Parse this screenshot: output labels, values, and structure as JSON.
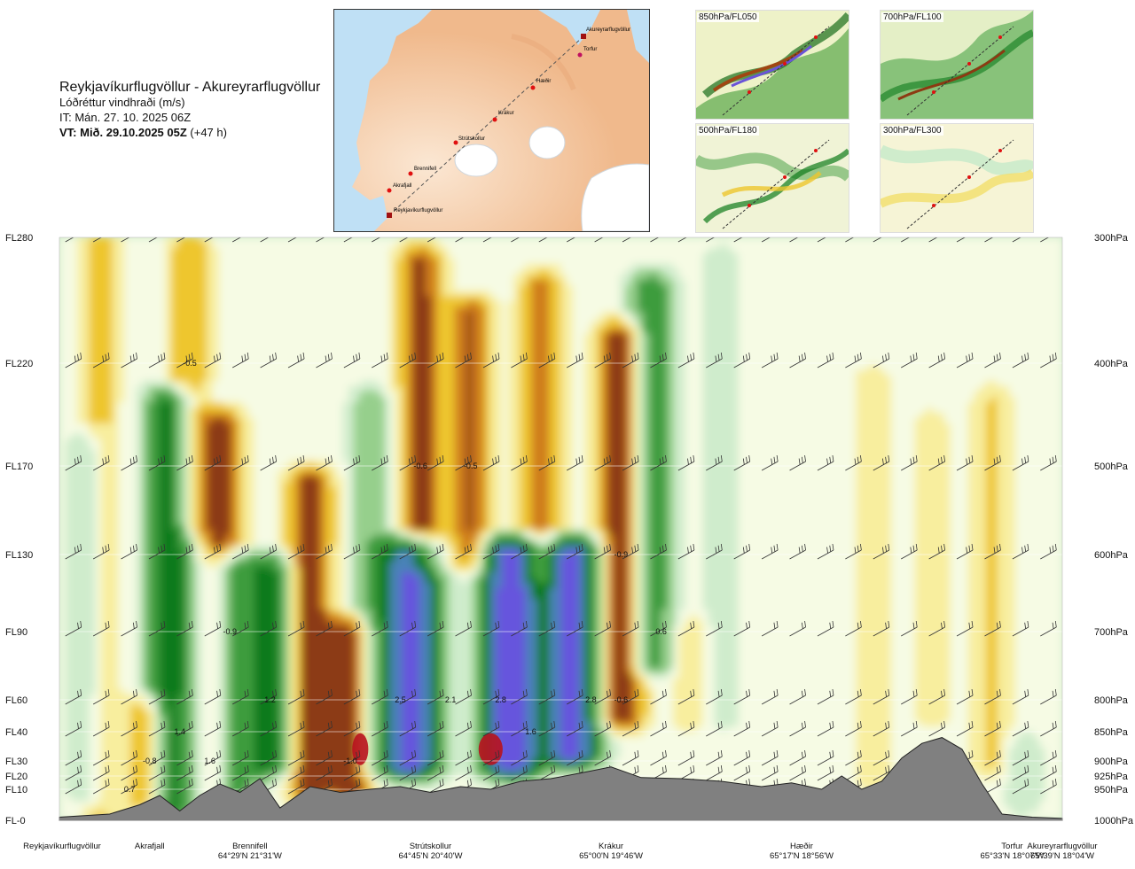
{
  "header": {
    "title": "Reykjavíkurflugvöllur - Akureyrarflugvöllur",
    "subtitle": "Lóðréttur vindhraði (m/s)",
    "it_line": "IT: Mán. 27. 10. 2025 06Z",
    "vt_label": "VT: Mið. 29.10.2025 05Z",
    "vt_offset": " (+47 h)"
  },
  "route_map": {
    "points": [
      "Reykjavíkurflugvöllur",
      "Akrafjall",
      "Brennifell",
      "Strútskollur",
      "Krákur",
      "Hæðir",
      "Torfur",
      "Akureyrarflugvöllur"
    ]
  },
  "thumbnails": [
    {
      "label": "850hPa/FL050"
    },
    {
      "label": "700hPa/FL100"
    },
    {
      "label": "500hPa/FL180"
    },
    {
      "label": "300hPa/FL300"
    }
  ],
  "colors": {
    "strong_down": "#8c3a12",
    "down": "#cf7d1a",
    "weak_down": "#eec62d",
    "very_weak_down": "#f8ee9e",
    "neutral": "#f6fbe4",
    "very_weak_up": "#cfeccc",
    "weak_up": "#96cf8c",
    "up": "#3d9c3c",
    "strong_up": "#0e7a1a",
    "very_strong_up": "#4a82b8",
    "extreme_up": "#6655dd",
    "extreme_down": "#b8121e",
    "terrain": "#808080"
  },
  "chart_data": {
    "type": "heatmap",
    "title": "Lóðréttur vindhraði (m/s)",
    "flight_levels": [
      {
        "fl": "FL280",
        "p": "300hPa"
      },
      {
        "fl": "FL220",
        "p": "400hPa"
      },
      {
        "fl": "FL170",
        "p": "500hPa"
      },
      {
        "fl": "FL130",
        "p": "600hPa"
      },
      {
        "fl": "FL90",
        "p": "700hPa"
      },
      {
        "fl": "FL60",
        "p": "800hPa"
      },
      {
        "fl": "FL40",
        "p": "850hPa"
      },
      {
        "fl": "FL30",
        "p": "900hPa"
      },
      {
        "fl": "FL20",
        "p": "925hPa"
      },
      {
        "fl": "FL10",
        "p": "950hPa"
      },
      {
        "fl": "FL-0",
        "p": "1000hPa"
      }
    ],
    "locations": [
      {
        "name": "Reykjavíkurflugvöllur",
        "coord": "",
        "dist": 0.0
      },
      {
        "name": "Akrafjall",
        "coord": "",
        "dist": 0.09
      },
      {
        "name": "Brennifell",
        "coord": "64°29'N 21°31'W",
        "dist": 0.19
      },
      {
        "name": "Strútskollur",
        "coord": "64°45'N 20°40'W",
        "dist": 0.37
      },
      {
        "name": "Krákur",
        "coord": "65°00'N 19°46'W",
        "dist": 0.55
      },
      {
        "name": "Hæðir",
        "coord": "65°17'N 18°56'W",
        "dist": 0.74
      },
      {
        "name": "Torfur",
        "coord": "65°33'N 18°07'W",
        "dist": 0.95
      },
      {
        "name": "Akureyrarflugvöllur",
        "coord": "65°39'N 18°04'W",
        "dist": 1.0
      }
    ],
    "value_labels": [
      {
        "text": "-0.5",
        "dist": 0.13,
        "p": 400
      },
      {
        "text": "-0.6",
        "dist": 0.36,
        "p": 500
      },
      {
        "text": "-0.5",
        "dist": 0.41,
        "p": 500
      },
      {
        "text": "-0.9",
        "dist": 0.56,
        "p": 600
      },
      {
        "text": "-0.9",
        "dist": 0.17,
        "p": 700
      },
      {
        "text": "0.6",
        "dist": 0.6,
        "p": 700
      },
      {
        "text": "1.2",
        "dist": 0.21,
        "p": 800
      },
      {
        "text": "2.5",
        "dist": 0.34,
        "p": 800
      },
      {
        "text": "2.1",
        "dist": 0.39,
        "p": 800
      },
      {
        "text": "2.8",
        "dist": 0.44,
        "p": 800
      },
      {
        "text": "2.8",
        "dist": 0.53,
        "p": 800
      },
      {
        "text": "-0.6",
        "dist": 0.56,
        "p": 800
      },
      {
        "text": "1.4",
        "dist": 0.12,
        "p": 850
      },
      {
        "text": "1.6",
        "dist": 0.47,
        "p": 850
      },
      {
        "text": "-0.8",
        "dist": 0.09,
        "p": 900
      },
      {
        "text": "1.6",
        "dist": 0.15,
        "p": 900
      },
      {
        "text": "-1.0",
        "dist": 0.29,
        "p": 900
      },
      {
        "text": "0.7",
        "dist": 0.07,
        "p": 950
      }
    ],
    "columns": [
      {
        "dist": 0.03,
        "sign": 1,
        "bot": 950,
        "top": 480,
        "amp": 0.45
      },
      {
        "dist": 0.04,
        "sign": -1,
        "bot": 1000,
        "top": 300,
        "amp": 0.4
      },
      {
        "dist": 0.09,
        "sign": -1,
        "bot": 960,
        "top": 820,
        "amp": 0.85
      },
      {
        "dist": 0.11,
        "sign": 1,
        "bot": 970,
        "top": 440,
        "amp": 1.3
      },
      {
        "dist": 0.13,
        "sign": -1,
        "bot": 560,
        "top": 310,
        "amp": 0.55
      },
      {
        "dist": 0.16,
        "sign": -1,
        "bot": 960,
        "top": 460,
        "amp": 0.9
      },
      {
        "dist": 0.17,
        "sign": 1,
        "bot": 970,
        "top": 620,
        "amp": 1.25
      },
      {
        "dist": 0.21,
        "sign": 1,
        "bot": 900,
        "top": 620,
        "amp": 1.1
      },
      {
        "dist": 0.25,
        "sign": -1,
        "bot": 940,
        "top": 520,
        "amp": 1.0
      },
      {
        "dist": 0.29,
        "sign": -1,
        "bot": 940,
        "top": 700,
        "amp": 1.05
      },
      {
        "dist": 0.31,
        "sign": 1,
        "bot": 900,
        "top": 440,
        "amp": 0.5
      },
      {
        "dist": 0.35,
        "sign": 1,
        "bot": 900,
        "top": 600,
        "amp": 2.3
      },
      {
        "dist": 0.36,
        "sign": -1,
        "bot": 600,
        "top": 320,
        "amp": 0.9
      },
      {
        "dist": 0.41,
        "sign": -1,
        "bot": 600,
        "top": 360,
        "amp": 0.8
      },
      {
        "dist": 0.45,
        "sign": 1,
        "bot": 900,
        "top": 600,
        "amp": 2.4
      },
      {
        "dist": 0.48,
        "sign": -1,
        "bot": 620,
        "top": 340,
        "amp": 0.7
      },
      {
        "dist": 0.51,
        "sign": 1,
        "bot": 880,
        "top": 600,
        "amp": 2.3
      },
      {
        "dist": 0.56,
        "sign": -1,
        "bot": 820,
        "top": 380,
        "amp": 1.1
      },
      {
        "dist": 0.59,
        "sign": 1,
        "bot": 740,
        "top": 340,
        "amp": 0.9
      },
      {
        "dist": 0.63,
        "sign": -1,
        "bot": 820,
        "top": 700,
        "amp": 0.3
      },
      {
        "dist": 0.66,
        "sign": 1,
        "bot": 820,
        "top": 320,
        "amp": 0.25
      },
      {
        "dist": 0.81,
        "sign": -1,
        "bot": 920,
        "top": 420,
        "amp": 0.25
      },
      {
        "dist": 0.87,
        "sign": -1,
        "bot": 820,
        "top": 460,
        "amp": 0.2
      },
      {
        "dist": 0.93,
        "sign": -1,
        "bot": 900,
        "top": 440,
        "amp": 0.35
      },
      {
        "dist": 0.96,
        "sign": 1,
        "bot": 960,
        "top": 880,
        "amp": 0.3
      }
    ],
    "terrain_p": [
      [
        0.0,
        995
      ],
      [
        0.05,
        990
      ],
      [
        0.08,
        975
      ],
      [
        0.1,
        960
      ],
      [
        0.12,
        985
      ],
      [
        0.14,
        960
      ],
      [
        0.16,
        940
      ],
      [
        0.18,
        955
      ],
      [
        0.2,
        930
      ],
      [
        0.22,
        980
      ],
      [
        0.25,
        945
      ],
      [
        0.28,
        955
      ],
      [
        0.31,
        950
      ],
      [
        0.34,
        945
      ],
      [
        0.37,
        955
      ],
      [
        0.4,
        945
      ],
      [
        0.43,
        950
      ],
      [
        0.46,
        935
      ],
      [
        0.49,
        930
      ],
      [
        0.52,
        920
      ],
      [
        0.55,
        910
      ],
      [
        0.58,
        928
      ],
      [
        0.62,
        930
      ],
      [
        0.66,
        935
      ],
      [
        0.7,
        945
      ],
      [
        0.73,
        938
      ],
      [
        0.76,
        950
      ],
      [
        0.78,
        925
      ],
      [
        0.8,
        950
      ],
      [
        0.82,
        935
      ],
      [
        0.84,
        895
      ],
      [
        0.86,
        870
      ],
      [
        0.88,
        860
      ],
      [
        0.9,
        880
      ],
      [
        0.92,
        940
      ],
      [
        0.94,
        990
      ],
      [
        0.97,
        995
      ],
      [
        1.0,
        997
      ]
    ],
    "y_axis": "pressure (hPa)",
    "ylim": [
      1000,
      300
    ]
  }
}
